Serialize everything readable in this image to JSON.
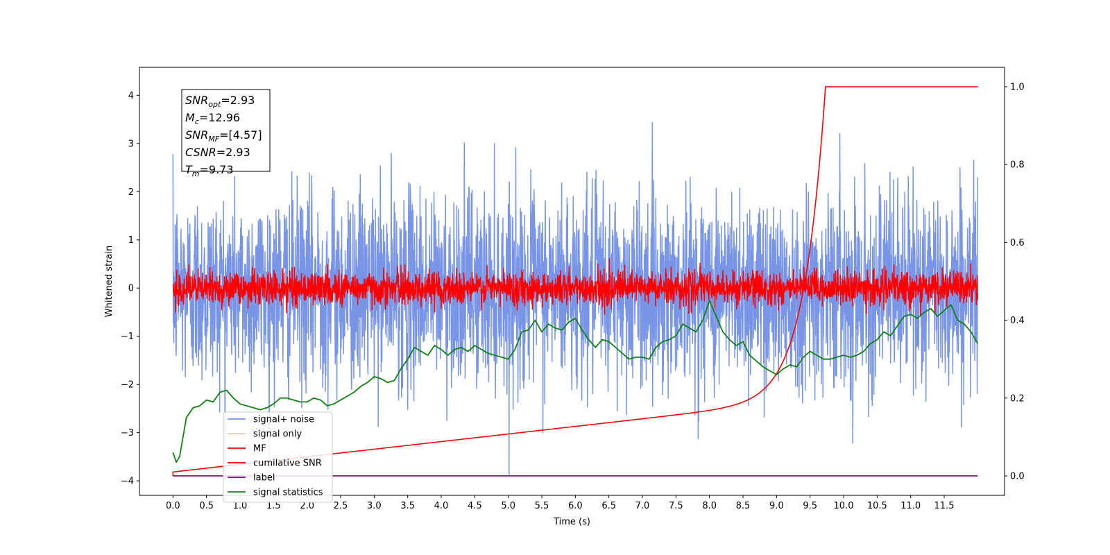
{
  "chart_data": {
    "type": "line",
    "xlabel": "Time (s)",
    "ylabel": "Whitened strain",
    "xlim": [
      -0.5,
      12.4
    ],
    "ylim": [
      -4.3,
      4.58
    ],
    "y2lim": [
      -0.05,
      1.05
    ],
    "x_ticks": [
      "0.0",
      "0.5",
      "1.0",
      "1.5",
      "2.0",
      "2.5",
      "3.0",
      "3.5",
      "4.0",
      "4.5",
      "5.0",
      "5.5",
      "6.0",
      "6.5",
      "7.0",
      "7.5",
      "8.0",
      "8.5",
      "9.0",
      "9.5",
      "10.0",
      "10.5",
      "11.0",
      "11.5"
    ],
    "y_ticks": [
      "4",
      "3",
      "2",
      "1",
      "0",
      "−1",
      "−2",
      "−3",
      "−4"
    ],
    "y2_ticks": [
      "1.0",
      "0.8",
      "0.6",
      "0.4",
      "0.2",
      "0.0"
    ],
    "grid": false,
    "legend_position": "lower-left",
    "duration": 12.0,
    "merger_time": 9.73,
    "series": [
      {
        "name": "signal+ noise",
        "color": "#7895e8",
        "axis": "left",
        "kind": "noise",
        "sigma": 1.0,
        "samples": 3000
      },
      {
        "name": "signal only",
        "color": "#ffd27f",
        "axis": "left",
        "kind": "zero"
      },
      {
        "name": "MF",
        "color": "#ff0000",
        "axis": "left",
        "kind": "noise",
        "sigma": 0.17,
        "samples": 3000
      },
      {
        "name": "cumilative SNR",
        "color": "#ff0000",
        "axis": "right",
        "kind": "cumulative"
      },
      {
        "name": "label",
        "color": "#800080",
        "axis": "right",
        "kind": "flat",
        "value": 0.0
      },
      {
        "name": "signal statistics",
        "color": "#118011",
        "axis": "right",
        "kind": "points",
        "x": [
          0.0,
          0.05,
          0.1,
          0.2,
          0.3,
          0.4,
          0.5,
          0.6,
          0.7,
          0.8,
          0.9,
          1.0,
          1.1,
          1.2,
          1.3,
          1.4,
          1.5,
          1.6,
          1.7,
          1.8,
          1.9,
          2.0,
          2.1,
          2.2,
          2.3,
          2.4,
          2.5,
          2.6,
          2.7,
          2.8,
          2.9,
          3.0,
          3.1,
          3.2,
          3.3,
          3.4,
          3.5,
          3.6,
          3.7,
          3.8,
          3.9,
          4.0,
          4.1,
          4.2,
          4.3,
          4.4,
          4.5,
          4.6,
          4.7,
          4.8,
          4.9,
          5.0,
          5.1,
          5.2,
          5.3,
          5.4,
          5.5,
          5.6,
          5.7,
          5.8,
          5.9,
          6.0,
          6.1,
          6.2,
          6.3,
          6.4,
          6.5,
          6.6,
          6.7,
          6.8,
          6.9,
          7.0,
          7.1,
          7.2,
          7.3,
          7.4,
          7.5,
          7.6,
          7.7,
          7.8,
          7.9,
          8.0,
          8.1,
          8.2,
          8.3,
          8.4,
          8.5,
          8.6,
          8.7,
          8.8,
          8.9,
          9.0,
          9.1,
          9.2,
          9.3,
          9.4,
          9.5,
          9.6,
          9.7,
          9.8,
          9.9,
          10.0,
          10.1,
          10.2,
          10.3,
          10.4,
          10.5,
          10.6,
          10.7,
          10.8,
          10.9,
          11.0,
          11.1,
          11.2,
          11.3,
          11.4,
          11.5,
          11.6,
          11.7,
          11.8,
          11.9,
          12.0
        ],
        "y": [
          0.06,
          0.035,
          0.05,
          0.15,
          0.175,
          0.18,
          0.195,
          0.19,
          0.215,
          0.22,
          0.2,
          0.185,
          0.18,
          0.175,
          0.17,
          0.175,
          0.185,
          0.2,
          0.2,
          0.195,
          0.19,
          0.19,
          0.2,
          0.195,
          0.18,
          0.185,
          0.195,
          0.205,
          0.215,
          0.23,
          0.24,
          0.255,
          0.25,
          0.24,
          0.245,
          0.275,
          0.3,
          0.33,
          0.32,
          0.31,
          0.335,
          0.325,
          0.31,
          0.325,
          0.33,
          0.32,
          0.335,
          0.325,
          0.315,
          0.31,
          0.305,
          0.3,
          0.325,
          0.37,
          0.375,
          0.4,
          0.37,
          0.39,
          0.38,
          0.375,
          0.395,
          0.405,
          0.375,
          0.35,
          0.33,
          0.35,
          0.345,
          0.33,
          0.315,
          0.3,
          0.305,
          0.305,
          0.3,
          0.33,
          0.345,
          0.35,
          0.36,
          0.39,
          0.38,
          0.37,
          0.4,
          0.45,
          0.41,
          0.37,
          0.35,
          0.335,
          0.345,
          0.31,
          0.295,
          0.28,
          0.27,
          0.26,
          0.275,
          0.285,
          0.28,
          0.305,
          0.32,
          0.31,
          0.3,
          0.3,
          0.305,
          0.31,
          0.305,
          0.31,
          0.32,
          0.34,
          0.35,
          0.37,
          0.36,
          0.385,
          0.41,
          0.415,
          0.405,
          0.42,
          0.43,
          0.41,
          0.425,
          0.44,
          0.4,
          0.39,
          0.37,
          0.34
        ]
      }
    ],
    "annotation": {
      "lines": [
        {
          "sym": "SNR",
          "sub": "opt",
          "value": "=2.93"
        },
        {
          "sym": "M",
          "sub": "c",
          "value": "=12.96"
        },
        {
          "sym": "SNR",
          "sub": "MF",
          "value": "=[4.57]"
        },
        {
          "sym": "CSNR",
          "sub": "",
          "value": "=2.93"
        },
        {
          "sym": "T",
          "sub": "m",
          "value": "=9.73"
        }
      ]
    }
  }
}
